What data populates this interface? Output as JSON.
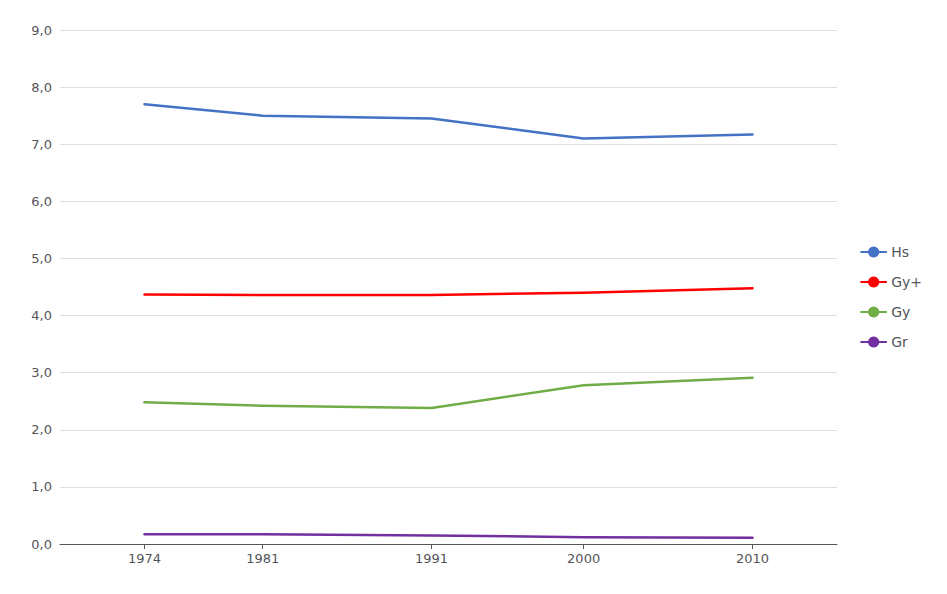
{
  "chart_data": {
    "type": "line",
    "x": [
      1974,
      1981,
      1991,
      2000,
      2010
    ],
    "series": [
      {
        "name": "Hs",
        "color": "#4472C4",
        "values": [
          7.7,
          7.5,
          7.45,
          7.1,
          7.17
        ]
      },
      {
        "name": "Gy+",
        "color": "#FF0000",
        "values": [
          4.37,
          4.36,
          4.36,
          4.4,
          4.48
        ]
      },
      {
        "name": "Gy",
        "color": "#70AD47",
        "values": [
          2.48,
          2.42,
          2.38,
          2.78,
          2.91
        ]
      },
      {
        "name": "Gr",
        "color": "#7030A0",
        "values": [
          0.17,
          0.17,
          0.15,
          0.12,
          0.11
        ]
      }
    ],
    "xlim": [
      1969,
      2015
    ],
    "xticks": [
      1974,
      1981,
      1991,
      2000,
      2010
    ],
    "ylim": [
      0,
      9.0
    ],
    "yticks": [
      {
        "value": 0.0,
        "label": "0,0"
      },
      {
        "value": 1.0,
        "label": "1,0"
      },
      {
        "value": 2.0,
        "label": "2,0"
      },
      {
        "value": 3.0,
        "label": "3,0"
      },
      {
        "value": 4.0,
        "label": "4,0"
      },
      {
        "value": 5.0,
        "label": "5,0"
      },
      {
        "value": 6.0,
        "label": "6,0"
      },
      {
        "value": 7.0,
        "label": "7,0"
      },
      {
        "value": 8.0,
        "label": "8,0"
      },
      {
        "value": 9.0,
        "label": "9,0"
      }
    ],
    "grid": true,
    "legend": "right"
  }
}
